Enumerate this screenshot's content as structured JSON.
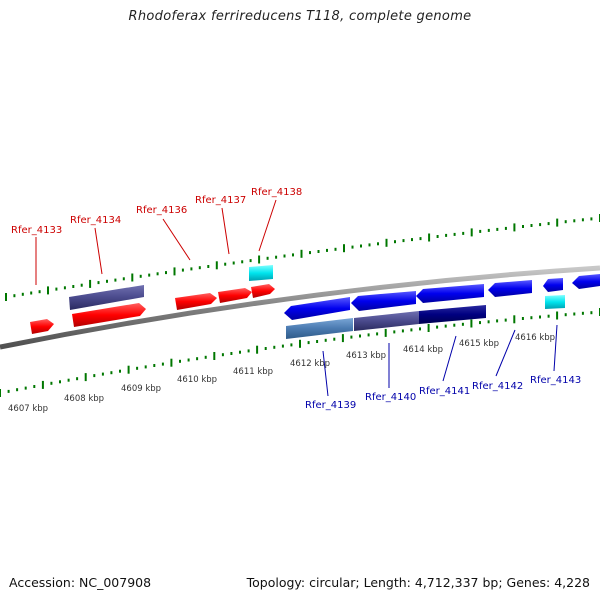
{
  "title": "Rhodoferax ferrireducens T118, complete genome",
  "footer": {
    "accession": "Accession: NC_007908",
    "summary": "Topology: circular; Length: 4,712,337 bp; Genes: 4,228"
  },
  "scale_labels": [
    "4607 kbp",
    "4608 kbp",
    "4609 kbp",
    "4610 kbp",
    "4611 kbp",
    "4612 kbp",
    "4613 kbp",
    "4614 kbp",
    "4615 kbp",
    "4616 kbp"
  ],
  "gene_labels_top": [
    "Rfer_4133",
    "Rfer_4134",
    "Rfer_4136",
    "Rfer_4137",
    "Rfer_4138"
  ],
  "gene_labels_bottom": [
    "Rfer_4139",
    "Rfer_4140",
    "Rfer_4141",
    "Rfer_4142",
    "Rfer_4143"
  ],
  "colors": {
    "forward_gene": "#ff0000",
    "reverse_gene": "#0000ee",
    "top_label": "#cc0000",
    "bottom_label": "#0000aa",
    "scale_tick": "#007700",
    "backbone": "#808080",
    "feature_purple": "#4a4a8c",
    "feature_steelblue": "#4a7ab0",
    "feature_navy": "#000080",
    "feature_cyan": "#00e5ee"
  }
}
